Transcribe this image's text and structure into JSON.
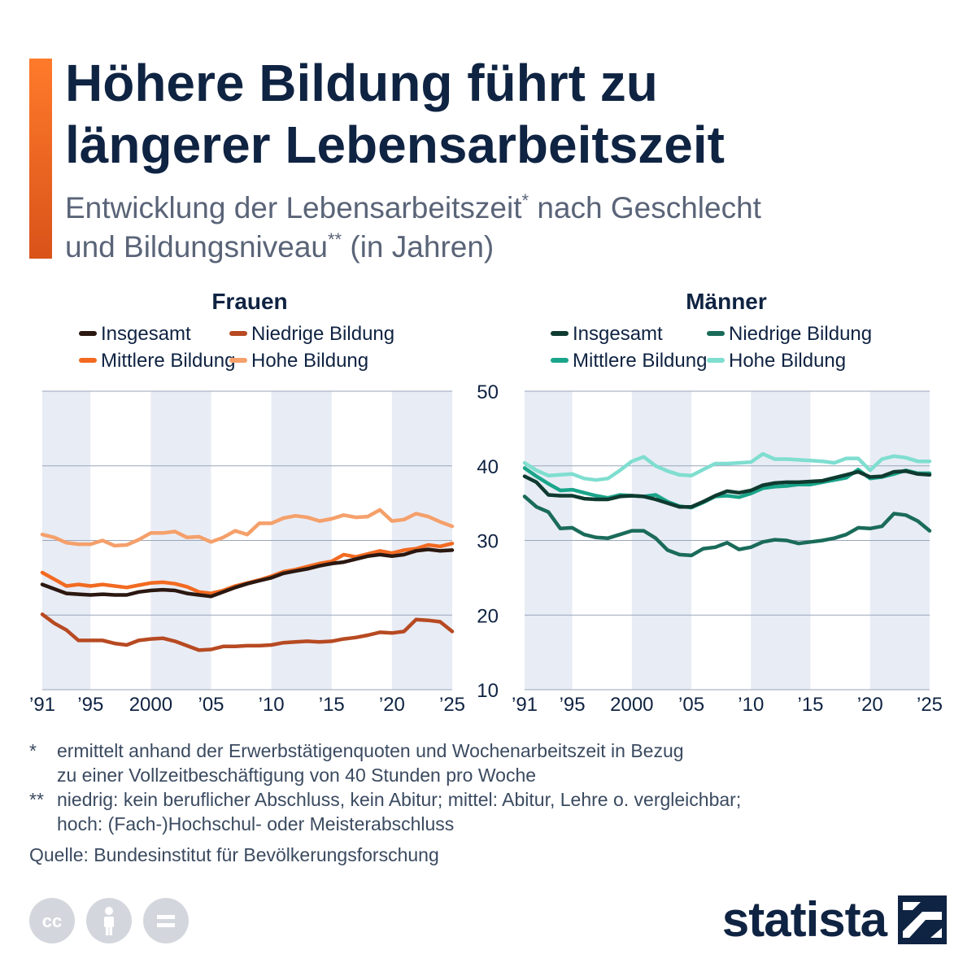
{
  "title_line1": "Höhere Bildung führt zu",
  "title_line2": "längerer Lebensarbeitszeit",
  "subtitle": {
    "part1": "Entwicklung der Lebensarbeitszeit",
    "sup1": "*",
    "part2": " nach Geschlecht",
    "part3": "und Bildungsniveau",
    "sup2": "**",
    "part4": " (in Jahren)"
  },
  "chart_data": [
    {
      "type": "line",
      "title": "Frauen",
      "x": [
        1991,
        1992,
        1993,
        1994,
        1995,
        1996,
        1997,
        1998,
        1999,
        2000,
        2001,
        2002,
        2003,
        2004,
        2005,
        2006,
        2007,
        2008,
        2009,
        2010,
        2011,
        2012,
        2013,
        2014,
        2015,
        2016,
        2017,
        2018,
        2019,
        2020,
        2021,
        2022,
        2023,
        2024,
        2025
      ],
      "x_tick_values": [
        1991,
        1995,
        2000,
        2005,
        2010,
        2015,
        2020,
        2025
      ],
      "x_tick_labels": [
        "’91",
        "’95",
        "2000",
        "’05",
        "’10",
        "’15",
        "’20",
        "’25"
      ],
      "ylim": [
        10,
        50
      ],
      "y_ticks": [
        10,
        20,
        30,
        40,
        50
      ],
      "y_tick_labels_shown": false,
      "grid": true,
      "legend_position": "top",
      "series": [
        {
          "name": "Insgesamt",
          "color": "#2b1810",
          "values": [
            24.1,
            23.5,
            22.9,
            22.8,
            22.7,
            22.8,
            22.7,
            22.7,
            23.1,
            23.3,
            23.4,
            23.3,
            22.9,
            22.7,
            22.5,
            23.1,
            23.7,
            24.2,
            24.6,
            25.0,
            25.6,
            25.9,
            26.2,
            26.6,
            26.9,
            27.1,
            27.5,
            27.9,
            28.1,
            27.9,
            28.1,
            28.6,
            28.8,
            28.6,
            28.7
          ]
        },
        {
          "name": "Niedrige Bildung",
          "color": "#b74a22",
          "values": [
            20.1,
            18.9,
            18.0,
            16.6,
            16.6,
            16.6,
            16.2,
            16.0,
            16.6,
            16.8,
            16.9,
            16.5,
            15.9,
            15.3,
            15.4,
            15.8,
            15.8,
            15.9,
            15.9,
            16.0,
            16.3,
            16.4,
            16.5,
            16.4,
            16.5,
            16.8,
            17.0,
            17.3,
            17.7,
            17.6,
            17.8,
            19.4,
            19.3,
            19.1,
            17.8
          ]
        },
        {
          "name": "Mittlere Bildung",
          "color": "#f26a21",
          "values": [
            25.7,
            24.8,
            23.9,
            24.1,
            23.9,
            24.1,
            23.9,
            23.7,
            24.0,
            24.3,
            24.4,
            24.2,
            23.8,
            23.1,
            22.9,
            23.3,
            23.9,
            24.3,
            24.7,
            25.2,
            25.8,
            26.1,
            26.5,
            26.9,
            27.2,
            28.1,
            27.8,
            28.2,
            28.6,
            28.3,
            28.7,
            28.9,
            29.4,
            29.2,
            29.6
          ]
        },
        {
          "name": "Hohe Bildung",
          "color": "#f5a06b",
          "values": [
            30.8,
            30.4,
            29.7,
            29.5,
            29.5,
            30.0,
            29.3,
            29.4,
            30.1,
            31.0,
            31.0,
            31.2,
            30.4,
            30.5,
            29.8,
            30.4,
            31.3,
            30.8,
            32.3,
            32.3,
            33.0,
            33.3,
            33.1,
            32.6,
            32.9,
            33.4,
            33.1,
            33.2,
            34.1,
            32.6,
            32.8,
            33.6,
            33.2,
            32.5,
            31.9
          ]
        }
      ]
    },
    {
      "type": "line",
      "title": "Männer",
      "x": [
        1991,
        1992,
        1993,
        1994,
        1995,
        1996,
        1997,
        1998,
        1999,
        2000,
        2001,
        2002,
        2003,
        2004,
        2005,
        2006,
        2007,
        2008,
        2009,
        2010,
        2011,
        2012,
        2013,
        2014,
        2015,
        2016,
        2017,
        2018,
        2019,
        2020,
        2021,
        2022,
        2023,
        2024,
        2025
      ],
      "x_tick_values": [
        1991,
        1995,
        2000,
        2005,
        2010,
        2015,
        2020,
        2025
      ],
      "x_tick_labels": [
        "’91",
        "’95",
        "2000",
        "’05",
        "’10",
        "’15",
        "’20",
        "’25"
      ],
      "ylim": [
        10,
        50
      ],
      "y_ticks": [
        10,
        20,
        30,
        40,
        50
      ],
      "y_tick_labels": [
        "10",
        "20",
        "30",
        "40",
        "50"
      ],
      "grid": true,
      "legend_position": "top",
      "series": [
        {
          "name": "Insgesamt",
          "color": "#0f3a30",
          "values": [
            38.6,
            37.8,
            36.1,
            36.0,
            36.0,
            35.6,
            35.5,
            35.5,
            35.9,
            36.0,
            35.9,
            35.5,
            35.0,
            34.5,
            34.5,
            35.2,
            36.0,
            36.6,
            36.4,
            36.7,
            37.4,
            37.7,
            37.8,
            37.8,
            37.9,
            38.0,
            38.4,
            38.8,
            39.2,
            38.5,
            38.6,
            39.2,
            39.3,
            38.9,
            38.8
          ]
        },
        {
          "name": "Niedrige Bildung",
          "color": "#1a6b5a",
          "values": [
            35.9,
            34.5,
            33.8,
            31.6,
            31.7,
            30.8,
            30.4,
            30.3,
            30.8,
            31.3,
            31.3,
            30.3,
            28.7,
            28.1,
            28.0,
            28.9,
            29.1,
            29.7,
            28.8,
            29.1,
            29.8,
            30.1,
            30.0,
            29.6,
            29.8,
            30.0,
            30.3,
            30.8,
            31.7,
            31.6,
            31.9,
            33.6,
            33.4,
            32.6,
            31.3
          ]
        },
        {
          "name": "Mittlere Bildung",
          "color": "#1aa58a",
          "values": [
            39.7,
            38.6,
            37.6,
            36.7,
            36.8,
            36.4,
            36.0,
            35.7,
            36.1,
            36.0,
            35.9,
            36.1,
            35.2,
            34.6,
            34.4,
            35.1,
            35.9,
            36.0,
            35.8,
            36.3,
            37.0,
            37.2,
            37.3,
            37.5,
            37.5,
            37.8,
            38.1,
            38.4,
            39.5,
            38.3,
            38.5,
            38.9,
            39.4,
            39.0,
            39.0
          ]
        },
        {
          "name": "Hohe Bildung",
          "color": "#7fded0",
          "values": [
            40.4,
            39.4,
            38.7,
            38.8,
            38.9,
            38.3,
            38.1,
            38.3,
            39.4,
            40.6,
            41.2,
            40.0,
            39.3,
            38.8,
            38.7,
            39.5,
            40.3,
            40.3,
            40.4,
            40.5,
            41.6,
            40.9,
            40.9,
            40.8,
            40.7,
            40.6,
            40.4,
            41.0,
            41.0,
            39.4,
            40.9,
            41.3,
            41.1,
            40.6,
            40.6
          ]
        }
      ]
    }
  ],
  "footnotes": [
    {
      "mark": "*",
      "lines": [
        "ermittelt anhand der Erwerbstätigenquoten und Wochenarbeitszeit in Bezug",
        "zu einer Vollzeitbeschäftigung von 40 Stunden pro Woche"
      ]
    },
    {
      "mark": "**",
      "lines": [
        "niedrig: kein beruflicher Abschluss, kein Abitur; mittel: Abitur, Lehre o. vergleichbar;",
        "hoch: (Fach-)Hochschul- oder Meisterabschluss"
      ]
    }
  ],
  "source": "Quelle: Bundesinstitut für Bevölkerungsforschung",
  "brand": "statista",
  "icons": [
    "cc-icon",
    "person-icon",
    "equals-icon",
    "statista-logo-icon"
  ],
  "colors": {
    "title": "#0f2342",
    "band": "#e8ecf5",
    "accent_top": "#ff7a2a",
    "accent_bottom": "#d9531a"
  }
}
